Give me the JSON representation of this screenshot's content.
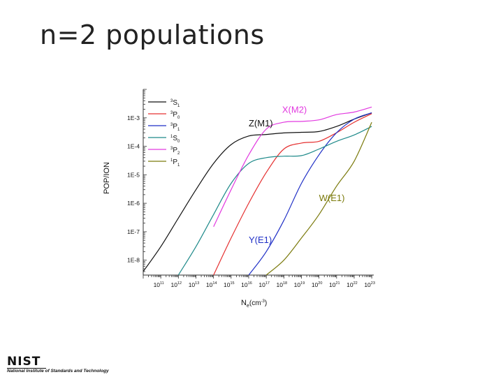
{
  "slide": {
    "title": "n=2 populations"
  },
  "logo": {
    "word": "NIST",
    "subtitle": "National Institute of Standards and Technology"
  },
  "chart_data": {
    "type": "line",
    "x_scale": "log",
    "y_scale": "log",
    "xlabel": "N",
    "xlabel_sub": "e",
    "xlabel_unit": "(cm",
    "xlabel_unit_sup": "-3",
    "xlabel_unit_close": ")",
    "ylabel": "POP/ION",
    "xlim": [
      10000000000.0,
      1.3e+23
    ],
    "ylim": [
      3e-09,
      0.01
    ],
    "x_ticks": [
      {
        "base": "10",
        "exp": "11",
        "v": 100000000000.0
      },
      {
        "base": "10",
        "exp": "12",
        "v": 1000000000000.0
      },
      {
        "base": "10",
        "exp": "13",
        "v": 10000000000000.0
      },
      {
        "base": "10",
        "exp": "14",
        "v": 100000000000000.0
      },
      {
        "base": "10",
        "exp": "15",
        "v": 1000000000000000.0
      },
      {
        "base": "10",
        "exp": "16",
        "v": 1e+16
      },
      {
        "base": "10",
        "exp": "17",
        "v": 1e+17
      },
      {
        "base": "10",
        "exp": "18",
        "v": 1e+18
      },
      {
        "base": "10",
        "exp": "19",
        "v": 1e+19
      },
      {
        "base": "10",
        "exp": "20",
        "v": 1e+20
      },
      {
        "base": "10",
        "exp": "21",
        "v": 1e+21
      },
      {
        "base": "10",
        "exp": "22",
        "v": 1e+22
      },
      {
        "base": "10",
        "exp": "23",
        "v": 1e+23
      }
    ],
    "y_ticks": [
      {
        "label": "1E-3",
        "v": 0.001
      },
      {
        "label": "1E-4",
        "v": 0.0001
      },
      {
        "label": "1E-5",
        "v": 1e-05
      },
      {
        "label": "1E-6",
        "v": 1e-06
      },
      {
        "label": "1E-7",
        "v": 1e-07
      },
      {
        "label": "1E-8",
        "v": 1e-08
      }
    ],
    "legend_position": "top-left",
    "series": [
      {
        "name": "S",
        "sup": "3",
        "sub": "1",
        "color": "#111111",
        "x": [
          10000000000.0,
          100000000000.0,
          1000000000000.0,
          10000000000000.0,
          100000000000000.0,
          1000000000000000.0,
          1e+16,
          1e+17,
          1e+18,
          1e+19,
          1e+20,
          1e+21,
          1e+22,
          1e+23
        ],
        "y": [
          4e-09,
          3e-08,
          3e-07,
          3e-06,
          2.5e-05,
          0.000115,
          0.00023,
          0.00026,
          0.000295,
          0.00031,
          0.00033,
          0.0005,
          0.0009,
          0.0015
        ]
      },
      {
        "name": "P",
        "sup": "3",
        "sub": "0",
        "color": "#e53030",
        "x": [
          100000000000000.0,
          1000000000000000.0,
          1e+16,
          1e+17,
          1e+18,
          1e+19,
          1e+20,
          1e+21,
          1e+22,
          1e+23
        ],
        "y": [
          3e-09,
          6e-08,
          1e-06,
          1.2e-05,
          8e-05,
          0.00013,
          0.00015,
          0.0003,
          0.0007,
          0.0014
        ]
      },
      {
        "name": "P",
        "sup": "3",
        "sub": "1",
        "color": "#1f2fc6",
        "x": [
          1e+16,
          1e+17,
          1e+18,
          1e+19,
          1e+20,
          1e+21,
          1e+22,
          1e+23
        ],
        "y": [
          3e-09,
          2e-08,
          2.5e-07,
          5e-06,
          5e-05,
          0.0003,
          0.0009,
          0.0015
        ]
      },
      {
        "name": "S",
        "sup": "1",
        "sub": "0",
        "color": "#1f8a8a",
        "x": [
          1000000000000.0,
          10000000000000.0,
          100000000000000.0,
          1000000000000000.0,
          1e+16,
          1e+17,
          1e+18,
          1e+19,
          1e+20,
          1e+21,
          1e+22,
          1e+23
        ],
        "y": [
          3e-09,
          3e-08,
          4e-07,
          5e-06,
          2.5e-05,
          4e-05,
          4.5e-05,
          4.7e-05,
          8e-05,
          0.00015,
          0.00025,
          0.0005
        ]
      },
      {
        "name": "P",
        "sup": "3",
        "sub": "2",
        "color": "#e23ae0",
        "x": [
          100000000000000.0,
          1000000000000000.0,
          1e+16,
          1e+17,
          1e+18,
          1e+19,
          1e+20,
          1e+21,
          1e+22,
          1e+23
        ],
        "y": [
          1.5e-07,
          3e-06,
          5e-05,
          0.0004,
          0.0007,
          0.00075,
          0.00085,
          0.0013,
          0.0016,
          0.0024
        ]
      },
      {
        "name": "P",
        "sup": "1",
        "sub": "1",
        "color": "#7b7a0c",
        "x": [
          1e+17,
          1e+18,
          1e+19,
          1e+20,
          1e+21,
          1e+22,
          1e+23
        ],
        "y": [
          3e-09,
          1e-08,
          6e-08,
          4e-07,
          4e-06,
          3e-05,
          0.0007
        ]
      }
    ],
    "annotations": [
      {
        "text": "Z(M1)",
        "color": "#111111",
        "x": 1e+16,
        "y": 0.0005
      },
      {
        "text": "X(M2)",
        "color": "#e23ae0",
        "x": 8e+17,
        "y": 0.0015
      },
      {
        "text": "W(E1)",
        "color": "#7b7a0c",
        "x": 1e+20,
        "y": 1.2e-06
      },
      {
        "text": "Y(E1)",
        "color": "#1f2fc6",
        "x": 1e+16,
        "y": 4e-08
      }
    ]
  }
}
